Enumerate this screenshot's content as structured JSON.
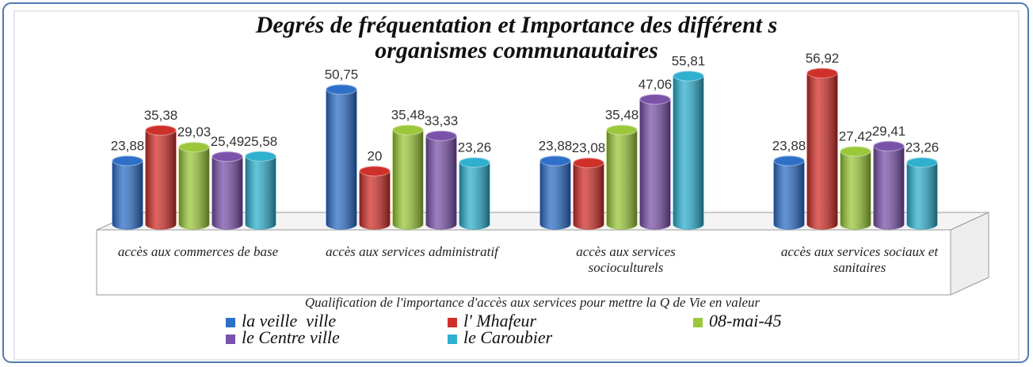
{
  "chart_data": {
    "type": "bar",
    "title": [
      "Degrés de fréquentation et Importance des différent s",
      "organismes communautaires"
    ],
    "x_label": "Qualification de l'importance d'accès aux services pour mettre la Q de Vie en valeur",
    "categories": [
      "accès aux commerces de base",
      "accès aux services administratif",
      "accès aux services socioculturels",
      "accès aux services sociaux et sanitaires"
    ],
    "series": [
      {
        "name": "la veille  ville",
        "color": "#2e6fc8",
        "values": [
          23.88,
          50.75,
          23.88,
          23.88
        ],
        "value_labels": [
          "23,88",
          "50,75",
          "23,88",
          "23,88"
        ]
      },
      {
        "name": "l' Mhafeur",
        "color": "#d0302a",
        "values": [
          35.38,
          20,
          23.08,
          56.92
        ],
        "value_labels": [
          "35,38",
          "20",
          "23,08",
          "56,92"
        ]
      },
      {
        "name": "08-mai-45",
        "color": "#9bc83a",
        "values": [
          29.03,
          35.48,
          35.48,
          27.42
        ],
        "value_labels": [
          "29,03",
          "35,48",
          "35,48",
          "27,42"
        ]
      },
      {
        "name": "le Centre ville",
        "color": "#7b52aa",
        "values": [
          25.49,
          33.33,
          47.06,
          29.41
        ],
        "value_labels": [
          "25,49",
          "33,33",
          "47,06",
          "29,41"
        ]
      },
      {
        "name": "le Caroubier",
        "color": "#2fb0cf",
        "values": [
          25.58,
          23.26,
          55.81,
          23.26
        ],
        "value_labels": [
          "25,58",
          "23,26",
          "55,81",
          "23,26"
        ]
      }
    ]
  }
}
